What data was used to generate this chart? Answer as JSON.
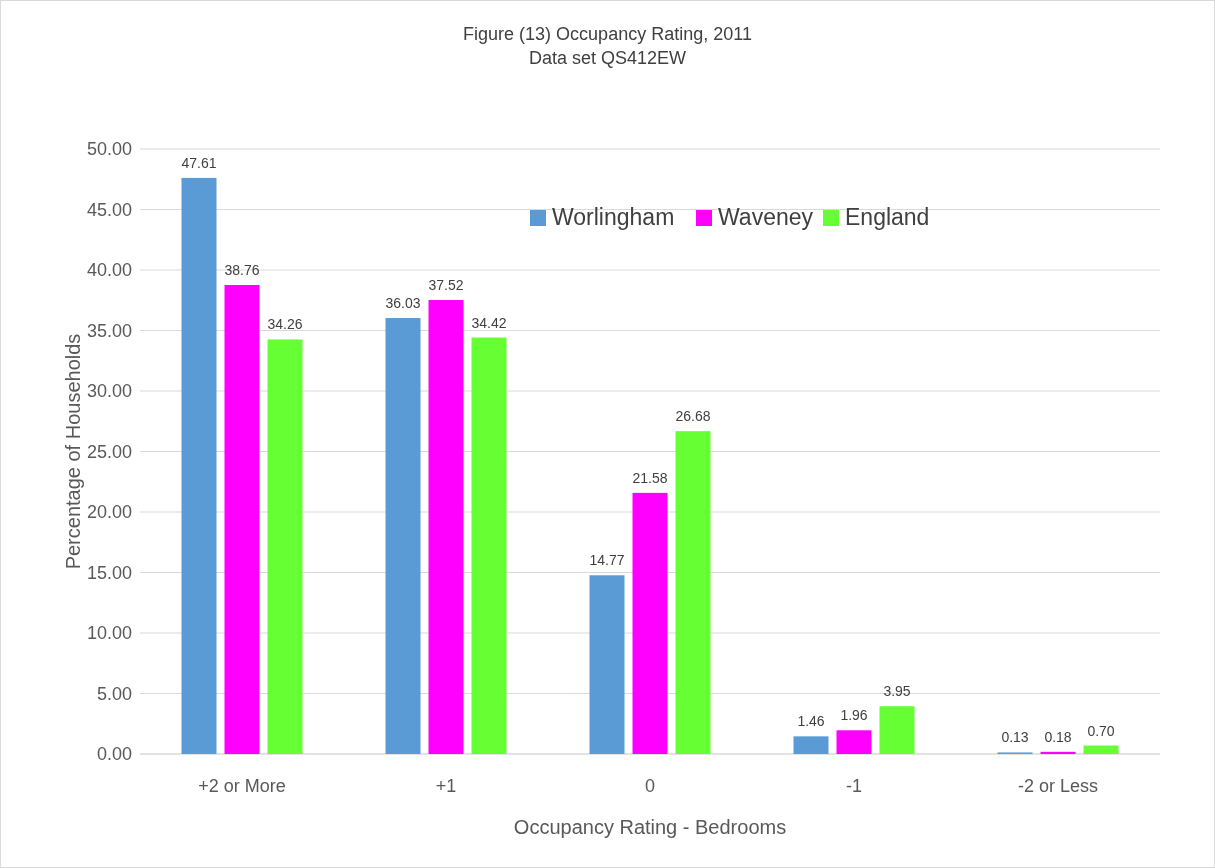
{
  "chart_data": {
    "type": "bar",
    "title": "Figure (13) Occupancy Rating, 2011",
    "subtitle": "Data set QS412EW",
    "xlabel": "Occupancy Rating - Bedrooms",
    "ylabel": "Percentage of Households",
    "categories": [
      "+2 or More",
      "+1",
      "0",
      "-1",
      "-2 or Less"
    ],
    "series": [
      {
        "name": "Worlingham",
        "color": "#5b9bd5",
        "values": [
          47.61,
          36.03,
          14.77,
          1.46,
          0.13
        ],
        "value_labels": [
          "47.61",
          "36.03",
          "14.77",
          "1.46",
          "0.13"
        ]
      },
      {
        "name": "Waveney",
        "color": "#ff00ff",
        "values": [
          38.76,
          37.52,
          21.58,
          1.96,
          0.18
        ],
        "value_labels": [
          "38.76",
          "37.52",
          "21.58",
          "1.96",
          "0.18"
        ]
      },
      {
        "name": "England",
        "color": "#66ff33",
        "values": [
          34.26,
          34.42,
          26.68,
          3.95,
          0.7
        ],
        "value_labels": [
          "34.26",
          "34.42",
          "26.68",
          "3.95",
          "0.70"
        ]
      }
    ],
    "ylim": [
      0,
      50
    ],
    "yticks": [
      {
        "value": 0,
        "label": "0.00"
      },
      {
        "value": 5,
        "label": "5.00"
      },
      {
        "value": 10,
        "label": "10.00"
      },
      {
        "value": 15,
        "label": "15.00"
      },
      {
        "value": 20,
        "label": "20.00"
      },
      {
        "value": 25,
        "label": "25.00"
      },
      {
        "value": 30,
        "label": "30.00"
      },
      {
        "value": 35,
        "label": "35.00"
      },
      {
        "value": 40,
        "label": "40.00"
      },
      {
        "value": 45,
        "label": "45.00"
      },
      {
        "value": 50,
        "label": "50.00"
      }
    ],
    "grid": "y",
    "legend": "top right"
  }
}
